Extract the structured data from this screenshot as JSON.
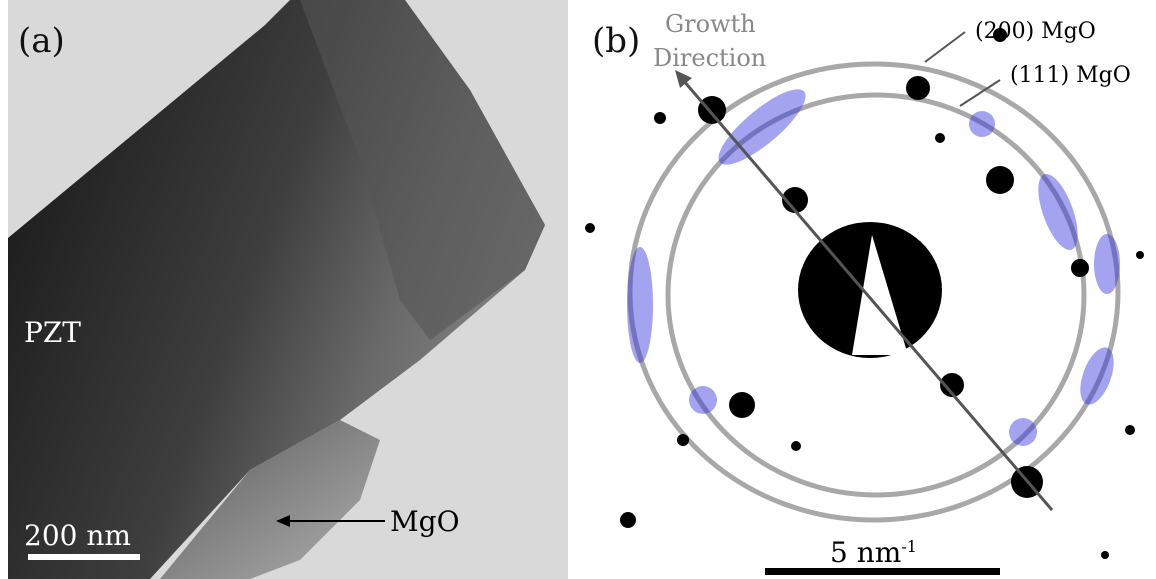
{
  "panel_a": {
    "label": "(a)",
    "layer_top": "PZT",
    "layer_bottom": "MgO",
    "scale_bar": "200 nm"
  },
  "panel_b": {
    "label": "(b)",
    "growth_direction": [
      "Growth",
      "Direction"
    ],
    "ring_outer": "(200) MgO",
    "ring_inner": "(111) MgO",
    "scale_bar": {
      "text": "5 nm",
      "superscript": "-1"
    }
  }
}
